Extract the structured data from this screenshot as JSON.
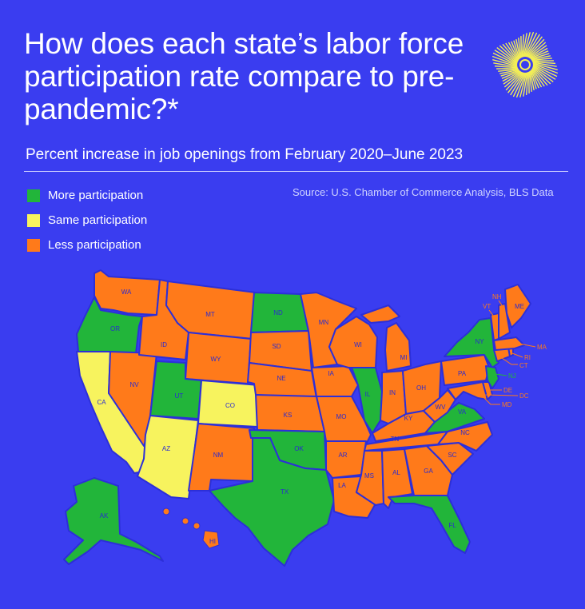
{
  "title": "How does each state’s labor force participation rate compare to pre-pandemic?*",
  "subtitle": "Percent increase in job openings from February 2020–June 2023",
  "source": "Source: U.S. Chamber of Commerce Analysis, BLS Data",
  "colors": {
    "background": "#3a3df0",
    "more": "#22b53a",
    "same": "#f7f35e",
    "less": "#ff7a1a",
    "logo": "#f3ef55"
  },
  "legend": [
    {
      "label": "More participation",
      "color": "#22b53a"
    },
    {
      "label": "Same participation",
      "color": "#f7f35e"
    },
    {
      "label": "Less participation",
      "color": "#ff7a1a"
    }
  ],
  "logo_icon": "sunburst-logo-icon",
  "states": {
    "WA": "less",
    "OR": "more",
    "CA": "same",
    "NV": "less",
    "ID": "less",
    "MT": "less",
    "WY": "less",
    "UT": "more",
    "CO": "same",
    "AZ": "same",
    "NM": "less",
    "ND": "more",
    "SD": "less",
    "NE": "less",
    "KS": "less",
    "OK": "more",
    "TX": "more",
    "MN": "less",
    "IA": "less",
    "MO": "less",
    "AR": "less",
    "LA": "less",
    "WI": "less",
    "IL": "more",
    "MI": "less",
    "IN": "less",
    "OH": "less",
    "KY": "less",
    "TN": "less",
    "MS": "less",
    "AL": "less",
    "GA": "less",
    "FL": "more",
    "SC": "less",
    "NC": "less",
    "VA": "more",
    "WV": "less",
    "PA": "less",
    "NY": "more",
    "VT": "less",
    "NH": "less",
    "ME": "less",
    "MA": "less",
    "RI": "less",
    "CT": "less",
    "NJ": "more",
    "DE": "less",
    "MD": "less",
    "DC": "less",
    "AK": "more",
    "HI": "less"
  }
}
